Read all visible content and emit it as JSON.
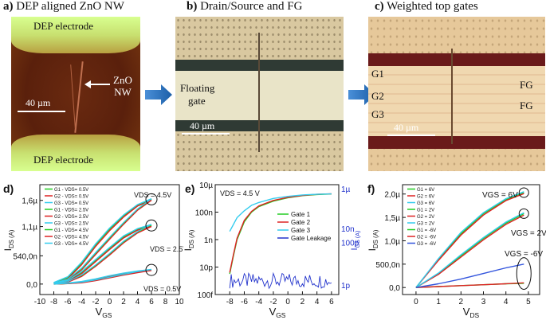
{
  "panels": {
    "a": {
      "letter": "a)",
      "title": "DEP aligned ZnO NW",
      "top_electrode": "DEP electrode",
      "bottom_electrode": "DEP electrode",
      "wire_label_1": "ZnO",
      "wire_label_2": "NW",
      "scale": "40 µm"
    },
    "b": {
      "letter": "b)",
      "title": "Drain/Source and FG",
      "fg_label_1": "Floating",
      "fg_label_2": "gate",
      "scale": "40 µm"
    },
    "c": {
      "letter": "c)",
      "title": "Weighted top gates",
      "g1": "G1",
      "g2": "G2",
      "g3": "G3",
      "fg1": "FG",
      "fg2": "FG",
      "scale": "40 µm"
    }
  },
  "chart_data": [
    {
      "type": "line",
      "panel": "d)",
      "xlabel": "VGS",
      "ylabel": "IDS (A)",
      "xlim": [
        -10,
        10
      ],
      "ylim": [
        -0.2,
        1.9
      ],
      "xticks": [
        "-10",
        "-8",
        "-6",
        "-4",
        "-2",
        "0",
        "2",
        "4",
        "6",
        "8",
        "10"
      ],
      "yticks": [
        {
          "v": 0,
          "t": "0,0"
        },
        {
          "v": 0.54,
          "t": "540,0n"
        },
        {
          "v": 1.1,
          "t": "1,1µ"
        },
        {
          "v": 1.6,
          "t": "1,6µ"
        }
      ],
      "legend": [
        "G1 - VDS= 0.5V",
        "G2 - VDS= 0.5V",
        "G3 - VDS= 0.5V",
        "G1 - VDS= 2.5V",
        "G2 - VDS= 2.5V",
        "G3 - VDS= 2.5V",
        "G1 - VDS= 4.5V",
        "G2 - VDS= 4.5V",
        "G3 - VDS= 4.5V"
      ],
      "annotations": [
        "VDS = 4.5V",
        "VDS = 2.5V",
        "VDS = 0.5V"
      ],
      "series": [
        {
          "name": "G1 4.5V",
          "color": "#22cc22",
          "x": [
            -8,
            -6,
            -4,
            -2,
            0,
            2,
            4,
            6
          ],
          "y": [
            0.02,
            0.12,
            0.4,
            0.75,
            1.05,
            1.3,
            1.5,
            1.62
          ]
        },
        {
          "name": "G2 4.5V",
          "color": "#dd2222",
          "x": [
            -8,
            -6,
            -4,
            -2,
            0,
            2,
            4,
            6
          ],
          "y": [
            0.01,
            0.1,
            0.37,
            0.72,
            1.02,
            1.28,
            1.49,
            1.6
          ]
        },
        {
          "name": "G3 4.5V",
          "color": "#33ccee",
          "x": [
            -8,
            -6,
            -4,
            -2,
            0,
            2,
            4,
            6
          ],
          "y": [
            0.03,
            0.14,
            0.42,
            0.77,
            1.07,
            1.32,
            1.52,
            1.63
          ]
        },
        {
          "name": "G1 2.5V",
          "color": "#22cc22",
          "x": [
            -8,
            -6,
            -4,
            -2,
            0,
            2,
            4,
            6
          ],
          "y": [
            0.01,
            0.06,
            0.22,
            0.45,
            0.68,
            0.9,
            1.05,
            1.12
          ]
        },
        {
          "name": "G2 2.5V",
          "color": "#dd2222",
          "x": [
            -8,
            -6,
            -4,
            -2,
            0,
            2,
            4,
            6
          ],
          "y": [
            0.0,
            0.05,
            0.2,
            0.43,
            0.66,
            0.88,
            1.03,
            1.1
          ]
        },
        {
          "name": "G3 2.5V",
          "color": "#33ccee",
          "x": [
            -8,
            -6,
            -4,
            -2,
            0,
            2,
            4,
            6
          ],
          "y": [
            0.02,
            0.07,
            0.24,
            0.47,
            0.7,
            0.92,
            1.06,
            1.14
          ]
        },
        {
          "name": "G1 0.5V",
          "color": "#22cc22",
          "x": [
            -8,
            -6,
            -4,
            -2,
            0,
            2,
            4,
            6
          ],
          "y": [
            0.0,
            0.01,
            0.04,
            0.09,
            0.15,
            0.2,
            0.24,
            0.27
          ]
        },
        {
          "name": "G2 0.5V",
          "color": "#dd2222",
          "x": [
            -8,
            -6,
            -4,
            -2,
            0,
            2,
            4,
            6
          ],
          "y": [
            0.0,
            0.01,
            0.03,
            0.08,
            0.14,
            0.19,
            0.23,
            0.26
          ]
        },
        {
          "name": "G3 0.5V",
          "color": "#33ccee",
          "x": [
            -8,
            -6,
            -4,
            -2,
            0,
            2,
            4,
            6
          ],
          "y": [
            0.0,
            0.02,
            0.05,
            0.1,
            0.16,
            0.21,
            0.25,
            0.28
          ]
        }
      ]
    },
    {
      "type": "line",
      "panel": "e)",
      "xlabel": "VGS",
      "ylabel": "IDS (A)",
      "ylabel_right": "IGS (A)",
      "annotation": "VDS = 4.5 V",
      "xlim": [
        -10,
        7
      ],
      "ylim_log": [
        -13,
        -5
      ],
      "xticks": [
        "-8",
        "-6",
        "-4",
        "-2",
        "0",
        "2",
        "4",
        "6"
      ],
      "yticks": [
        {
          "v": -13,
          "t": "100f"
        },
        {
          "v": -11,
          "t": "10p"
        },
        {
          "v": -9,
          "t": "1n"
        },
        {
          "v": -7,
          "t": "100n"
        },
        {
          "v": -5,
          "t": "10µ"
        }
      ],
      "yticks_right": [
        {
          "v": -12.3,
          "t": "1p"
        },
        {
          "v": -9.2,
          "t": "100p"
        },
        {
          "v": -8.2,
          "t": "10n"
        },
        {
          "v": -5.3,
          "t": "1µ"
        }
      ],
      "legend": [
        "Gate 1",
        "Gate 2",
        "Gate 3",
        "Gate Leakage"
      ],
      "series": [
        {
          "name": "Gate 1",
          "color": "#22cc22",
          "x": [
            -8,
            -7.5,
            -7,
            -6,
            -5,
            -4,
            -2,
            0,
            2,
            4,
            6
          ],
          "y": [
            -11.5,
            -10.2,
            -9.0,
            -7.7,
            -7.0,
            -6.6,
            -6.2,
            -5.95,
            -5.8,
            -5.72,
            -5.68
          ]
        },
        {
          "name": "Gate 2",
          "color": "#dd2222",
          "x": [
            -8,
            -7.5,
            -7,
            -6,
            -5,
            -4,
            -2,
            0,
            2,
            4,
            6
          ],
          "y": [
            -11.4,
            -10.1,
            -8.9,
            -7.6,
            -6.95,
            -6.55,
            -6.15,
            -5.92,
            -5.78,
            -5.7,
            -5.66
          ]
        },
        {
          "name": "Gate 3",
          "color": "#33ccee",
          "x": [
            -8,
            -7,
            -6,
            -5,
            -4,
            -2,
            0,
            2,
            4,
            6
          ],
          "y": [
            -8.4,
            -7.4,
            -6.9,
            -6.5,
            -6.3,
            -6.0,
            -5.85,
            -5.75,
            -5.7,
            -5.67
          ]
        },
        {
          "name": "Gate Leakage",
          "color": "#2233cc",
          "noise": true,
          "x_range": [
            -8,
            6
          ],
          "y_center": -12.0,
          "y_spread": 0.55
        }
      ]
    },
    {
      "type": "line",
      "panel": "f)",
      "xlabel": "VDS",
      "ylabel": "IDS (A)",
      "xlim": [
        -0.6,
        5.5
      ],
      "ylim": [
        -0.15,
        2.2
      ],
      "xticks": [
        "0",
        "1",
        "2",
        "3",
        "4",
        "5"
      ],
      "yticks": [
        {
          "v": 0,
          "t": "0,0"
        },
        {
          "v": 0.5,
          "t": "500,0n"
        },
        {
          "v": 1.0,
          "t": "1,0µ"
        },
        {
          "v": 1.5,
          "t": "1,5µ"
        },
        {
          "v": 2.0,
          "t": "2,0µ"
        }
      ],
      "legend": [
        "G1 = 6V",
        "G2 = 6V",
        "G3 = 6V",
        "G1 = 2V",
        "G2 = 2V",
        "G3 = 2V",
        "G1 = -6V",
        "G2 = -6V",
        "G3 = -6V"
      ],
      "annotations": [
        "VGS = 6V",
        "VGS = 2V",
        "VGS = -6V"
      ],
      "series": [
        {
          "name": "G1 6V",
          "color": "#22cc22",
          "x": [
            0,
            1,
            2,
            3,
            4,
            4.8
          ],
          "y": [
            0,
            0.6,
            1.15,
            1.58,
            1.88,
            2.03
          ]
        },
        {
          "name": "G2 6V",
          "color": "#dd2222",
          "x": [
            0,
            1,
            2,
            3,
            4,
            4.8
          ],
          "y": [
            0,
            0.58,
            1.12,
            1.55,
            1.86,
            2.01
          ]
        },
        {
          "name": "G3 6V",
          "color": "#33ccee",
          "x": [
            0,
            1,
            2,
            3,
            4,
            4.8
          ],
          "y": [
            0,
            0.62,
            1.18,
            1.6,
            1.9,
            2.05
          ]
        },
        {
          "name": "G1 2V",
          "color": "#22cc22",
          "x": [
            0,
            1,
            2,
            3,
            4,
            4.8
          ],
          "y": [
            0,
            0.3,
            0.68,
            1.05,
            1.38,
            1.58
          ]
        },
        {
          "name": "G2 2V",
          "color": "#dd2222",
          "x": [
            0,
            1,
            2,
            3,
            4,
            4.8
          ],
          "y": [
            0,
            0.28,
            0.65,
            1.02,
            1.35,
            1.55
          ]
        },
        {
          "name": "G3 2V",
          "color": "#33ccee",
          "x": [
            0,
            1,
            2,
            3,
            4,
            4.8
          ],
          "y": [
            0,
            0.31,
            0.7,
            1.07,
            1.4,
            1.6
          ]
        },
        {
          "name": "G1 -6V",
          "color": "#22cc22",
          "x": [
            0,
            1,
            2,
            3,
            4,
            4.8
          ],
          "y": [
            0,
            0.02,
            0.04,
            0.06,
            0.08,
            0.09
          ]
        },
        {
          "name": "G2 -6V",
          "color": "#dd2222",
          "x": [
            0,
            1,
            2,
            3,
            4,
            4.8
          ],
          "y": [
            0,
            0.02,
            0.04,
            0.06,
            0.08,
            0.1
          ]
        },
        {
          "name": "G3 -6V",
          "color": "#3355dd",
          "x": [
            0,
            1,
            2,
            3,
            4,
            4.8
          ],
          "y": [
            0,
            0.08,
            0.18,
            0.3,
            0.42,
            0.5
          ]
        }
      ]
    }
  ]
}
